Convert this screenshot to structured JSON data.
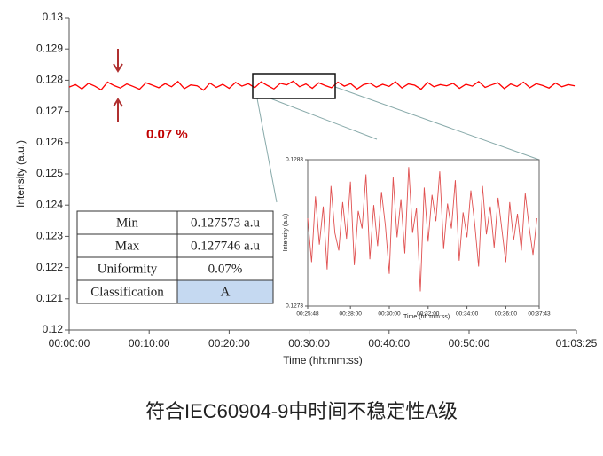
{
  "chart_data": [
    {
      "type": "line",
      "ylabel": "Intensity (a.u.)",
      "xlabel": "Time (hh:mm:ss)",
      "color": "#ff0000",
      "annotation": "0.07 %",
      "xlim": [
        0,
        3805
      ],
      "ylim": [
        0.12,
        0.13
      ],
      "yticks": [
        0.12,
        0.121,
        0.122,
        0.123,
        0.124,
        0.125,
        0.126,
        0.127,
        0.128,
        0.129,
        0.13
      ],
      "xticks": [
        {
          "value": 0,
          "label": "00:00:00"
        },
        {
          "value": 600,
          "label": "00:10:00"
        },
        {
          "value": 1200,
          "label": "00:20:00"
        },
        {
          "value": 1800,
          "label": "00:30:00"
        },
        {
          "value": 2400,
          "label": "00:40:00"
        },
        {
          "value": 3000,
          "label": "00:50:00"
        },
        {
          "value": 3805,
          "label": "01:03:25"
        }
      ],
      "x": [
        0,
        48,
        96,
        144,
        192,
        240,
        288,
        336,
        384,
        432,
        480,
        528,
        576,
        624,
        672,
        720,
        768,
        816,
        864,
        912,
        960,
        1008,
        1056,
        1104,
        1152,
        1200,
        1248,
        1296,
        1344,
        1392,
        1440,
        1488,
        1536,
        1584,
        1632,
        1680,
        1728,
        1776,
        1824,
        1872,
        1920,
        1968,
        2016,
        2064,
        2112,
        2160,
        2208,
        2256,
        2304,
        2352,
        2400,
        2448,
        2496,
        2544,
        2592,
        2640,
        2688,
        2736,
        2784,
        2832,
        2880,
        2928,
        2976,
        3024,
        3072,
        3120,
        3168,
        3216,
        3264,
        3312,
        3360,
        3408,
        3456,
        3504,
        3552,
        3600,
        3648,
        3696,
        3744,
        3792
      ],
      "values": [
        0.12778,
        0.12786,
        0.12772,
        0.1279,
        0.12781,
        0.12769,
        0.12794,
        0.12783,
        0.12775,
        0.12788,
        0.1278,
        0.12771,
        0.12792,
        0.12784,
        0.12776,
        0.12789,
        0.12779,
        0.12796,
        0.12773,
        0.12785,
        0.12782,
        0.12768,
        0.12791,
        0.12777,
        0.12787,
        0.12774,
        0.12793,
        0.12781,
        0.12789,
        0.12776,
        0.12795,
        0.12783,
        0.12772,
        0.1279,
        0.12785,
        0.12797,
        0.12779,
        0.12788,
        0.12774,
        0.12792,
        0.12783,
        0.12776,
        0.12794,
        0.12781,
        0.12789,
        0.12772,
        0.12786,
        0.12791,
        0.12778,
        0.12787,
        0.1278,
        0.12795,
        0.12775,
        0.12788,
        0.12784,
        0.12771,
        0.12793,
        0.12779,
        0.12786,
        0.12782,
        0.1279,
        0.12774,
        0.12787,
        0.12781,
        0.12796,
        0.12777,
        0.12785,
        0.12792,
        0.12773,
        0.12788,
        0.1278,
        0.12794,
        0.12776,
        0.12789,
        0.12783,
        0.12775,
        0.12791,
        0.12779,
        0.12786,
        0.12782
      ]
    },
    {
      "type": "line",
      "ylabel": "Intensity (a.u)",
      "xlabel": "Time (hh:mm:ss)",
      "color": "#e05050",
      "xlim": [
        1548,
        2263
      ],
      "ylim": [
        0.1273,
        0.1283
      ],
      "yticks": [
        0.1273,
        0.1283
      ],
      "xticks": [
        {
          "value": 1548,
          "label": "00:25:48"
        },
        {
          "value": 1680,
          "label": "00:28:00"
        },
        {
          "value": 1800,
          "label": "00:30:00"
        },
        {
          "value": 1920,
          "label": "00:32:00"
        },
        {
          "value": 2040,
          "label": "00:34:00"
        },
        {
          "value": 2160,
          "label": "00:36:00"
        },
        {
          "value": 2263,
          "label": "00:37:43"
        }
      ],
      "x": [
        1548,
        1560,
        1572,
        1584,
        1596,
        1608,
        1620,
        1632,
        1644,
        1656,
        1668,
        1680,
        1692,
        1704,
        1716,
        1728,
        1740,
        1752,
        1764,
        1776,
        1788,
        1800,
        1812,
        1824,
        1836,
        1848,
        1860,
        1872,
        1884,
        1896,
        1908,
        1920,
        1932,
        1944,
        1956,
        1968,
        1980,
        1992,
        2004,
        2016,
        2028,
        2040,
        2052,
        2064,
        2076,
        2088,
        2100,
        2112,
        2124,
        2136,
        2148,
        2160,
        2172,
        2184,
        2196,
        2208,
        2220,
        2232,
        2244,
        2256
      ],
      "values": [
        0.1279,
        0.1276,
        0.12805,
        0.12772,
        0.12798,
        0.12755,
        0.12812,
        0.1278,
        0.12768,
        0.12801,
        0.12776,
        0.12815,
        0.12758,
        0.12795,
        0.12783,
        0.1282,
        0.12762,
        0.12799,
        0.12771,
        0.12808,
        0.12785,
        0.12752,
        0.12818,
        0.12777,
        0.12803,
        0.12766,
        0.12825,
        0.1278,
        0.12797,
        0.1274,
        0.12811,
        0.12774,
        0.12806,
        0.12788,
        0.12822,
        0.12769,
        0.128,
        0.12783,
        0.12816,
        0.12761,
        0.12794,
        0.12777,
        0.12809,
        0.12786,
        0.12757,
        0.12812,
        0.12779,
        0.12798,
        0.1277,
        0.12804,
        0.12782,
        0.1276,
        0.12801,
        0.12775,
        0.12793,
        0.12768,
        0.12807,
        0.12784,
        0.12765,
        0.1279
      ]
    }
  ],
  "table": {
    "rows": [
      [
        "Min",
        "0.127573 a.u"
      ],
      [
        "Max",
        "0.127746 a.u"
      ],
      [
        "Uniformity",
        "0.07%"
      ],
      [
        "Classification",
        "A"
      ]
    ]
  },
  "caption": "符合IEC60904-9中时间不稳定性A级"
}
